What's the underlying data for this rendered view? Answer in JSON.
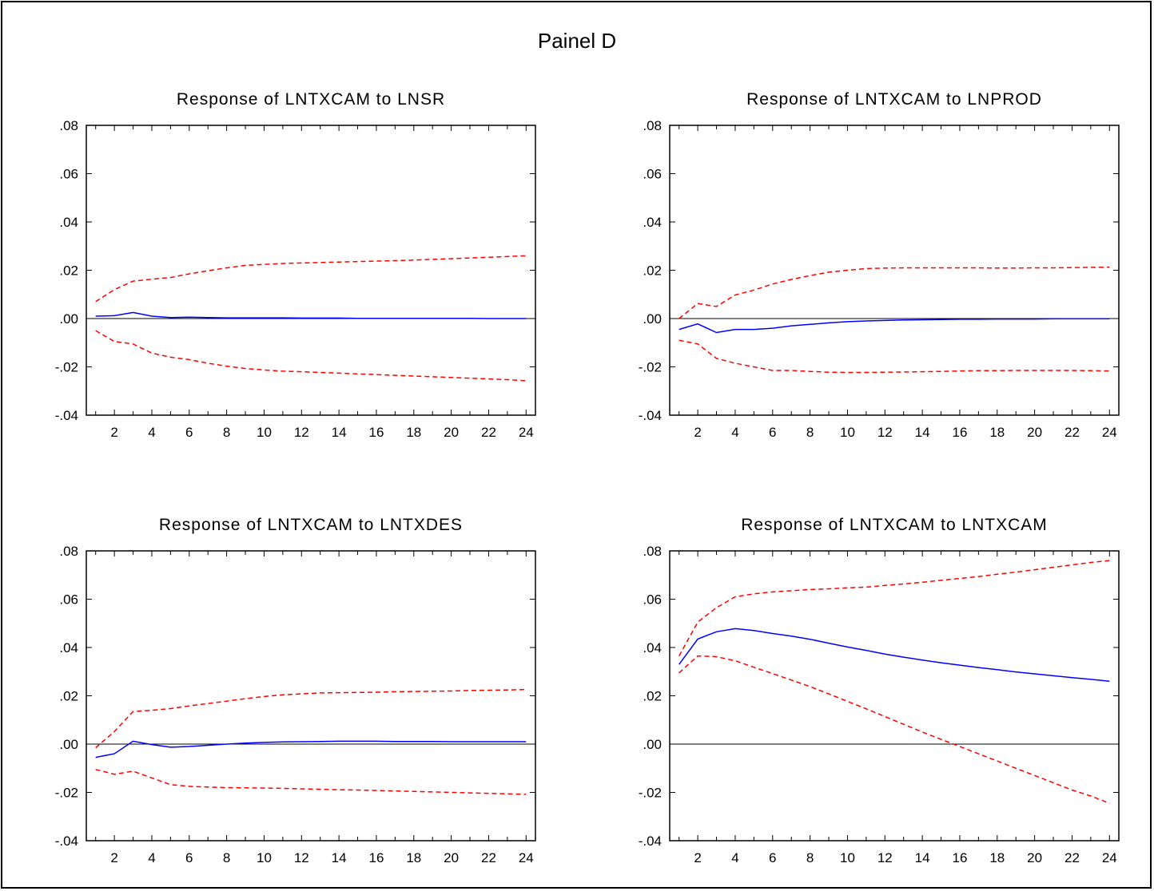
{
  "panel_title": "Painel D",
  "colors": {
    "response": "#0000ff",
    "band": "#ff0000",
    "zero": "#000000"
  },
  "chart_data": [
    {
      "type": "line",
      "title": "Response of LNTXCAM to LNSR",
      "x": [
        1,
        2,
        3,
        4,
        5,
        6,
        7,
        8,
        9,
        10,
        11,
        12,
        13,
        14,
        15,
        16,
        17,
        18,
        19,
        20,
        21,
        22,
        23,
        24
      ],
      "xticks": [
        2,
        4,
        6,
        8,
        10,
        12,
        14,
        16,
        18,
        20,
        22,
        24
      ],
      "yticks": [
        ".08",
        ".06",
        ".04",
        ".02",
        ".00",
        "-.02",
        "-.04"
      ],
      "ylim": [
        -0.04,
        0.08
      ],
      "series": [
        {
          "role": "response",
          "values": [
            0.001,
            0.0012,
            0.0025,
            0.001,
            0.0004,
            0.0006,
            0.0004,
            0.0003,
            0.0003,
            0.0003,
            0.0003,
            0.0002,
            0.0002,
            0.0002,
            0.0001,
            0.0001,
            0.0001,
            0.0001,
            0.0001,
            0.0001,
            0.0001,
            0.0,
            0.0,
            0.0
          ]
        },
        {
          "role": "upper",
          "values": [
            0.007,
            0.012,
            0.0155,
            0.0163,
            0.017,
            0.0185,
            0.0198,
            0.021,
            0.022,
            0.0224,
            0.0228,
            0.023,
            0.0232,
            0.0234,
            0.0236,
            0.0238,
            0.024,
            0.0242,
            0.0245,
            0.0248,
            0.0251,
            0.0254,
            0.0257,
            0.026
          ]
        },
        {
          "role": "lower",
          "values": [
            -0.005,
            -0.0095,
            -0.0105,
            -0.0143,
            -0.016,
            -0.017,
            -0.0185,
            -0.0197,
            -0.0207,
            -0.0213,
            -0.0218,
            -0.022,
            -0.0223,
            -0.0226,
            -0.0229,
            -0.0232,
            -0.0235,
            -0.0238,
            -0.0241,
            -0.0244,
            -0.0247,
            -0.025,
            -0.0253,
            -0.0258
          ]
        }
      ]
    },
    {
      "type": "line",
      "title": "Response of LNTXCAM to LNPROD",
      "x": [
        1,
        2,
        3,
        4,
        5,
        6,
        7,
        8,
        9,
        10,
        11,
        12,
        13,
        14,
        15,
        16,
        17,
        18,
        19,
        20,
        21,
        22,
        23,
        24
      ],
      "xticks": [
        2,
        4,
        6,
        8,
        10,
        12,
        14,
        16,
        18,
        20,
        22,
        24
      ],
      "yticks": [
        ".08",
        ".06",
        ".04",
        ".02",
        ".00",
        "-.02",
        "-.04"
      ],
      "ylim": [
        -0.04,
        0.08
      ],
      "series": [
        {
          "role": "response",
          "values": [
            -0.0045,
            -0.0022,
            -0.0058,
            -0.0045,
            -0.0045,
            -0.004,
            -0.003,
            -0.0024,
            -0.0018,
            -0.0013,
            -0.001,
            -0.0008,
            -0.0006,
            -0.0005,
            -0.0004,
            -0.0003,
            -0.0003,
            -0.0002,
            -0.0002,
            -0.0002,
            -0.0001,
            -0.0001,
            -0.0001,
            -0.0001
          ]
        },
        {
          "role": "upper",
          "values": [
            0.0,
            0.0062,
            0.005,
            0.0098,
            0.0118,
            0.0143,
            0.0162,
            0.0178,
            0.0192,
            0.02,
            0.0207,
            0.0209,
            0.021,
            0.021,
            0.021,
            0.021,
            0.021,
            0.0209,
            0.0209,
            0.021,
            0.021,
            0.0211,
            0.0212,
            0.0213
          ]
        },
        {
          "role": "lower",
          "values": [
            -0.009,
            -0.0105,
            -0.0165,
            -0.0185,
            -0.02,
            -0.0215,
            -0.0215,
            -0.0219,
            -0.0222,
            -0.0223,
            -0.0223,
            -0.0222,
            -0.0221,
            -0.022,
            -0.0219,
            -0.0217,
            -0.0216,
            -0.0216,
            -0.0215,
            -0.0215,
            -0.0215,
            -0.0215,
            -0.0216,
            -0.0217
          ]
        }
      ]
    },
    {
      "type": "line",
      "title": "Response of LNTXCAM to LNTXDES",
      "x": [
        1,
        2,
        3,
        4,
        5,
        6,
        7,
        8,
        9,
        10,
        11,
        12,
        13,
        14,
        15,
        16,
        17,
        18,
        19,
        20,
        21,
        22,
        23,
        24
      ],
      "xticks": [
        2,
        4,
        6,
        8,
        10,
        12,
        14,
        16,
        18,
        20,
        22,
        24
      ],
      "yticks": [
        ".08",
        ".06",
        ".04",
        ".02",
        ".00",
        "-.02",
        "-.04"
      ],
      "ylim": [
        -0.04,
        0.08
      ],
      "series": [
        {
          "role": "response",
          "values": [
            -0.0055,
            -0.004,
            0.0012,
            -0.0002,
            -0.0013,
            -0.001,
            -0.0005,
            0.0,
            0.0004,
            0.0007,
            0.0009,
            0.001,
            0.0011,
            0.0012,
            0.0012,
            0.0012,
            0.0011,
            0.0011,
            0.0011,
            0.001,
            0.001,
            0.001,
            0.001,
            0.001
          ]
        },
        {
          "role": "upper",
          "values": [
            -0.0015,
            0.0052,
            0.0135,
            0.014,
            0.0147,
            0.0158,
            0.0168,
            0.0178,
            0.0188,
            0.0197,
            0.0204,
            0.0208,
            0.0212,
            0.0213,
            0.0214,
            0.0215,
            0.0217,
            0.0218,
            0.0219,
            0.022,
            0.0222,
            0.0223,
            0.0224,
            0.0226
          ]
        },
        {
          "role": "lower",
          "values": [
            -0.0105,
            -0.0125,
            -0.0112,
            -0.014,
            -0.0168,
            -0.0175,
            -0.0178,
            -0.018,
            -0.0181,
            -0.0182,
            -0.0183,
            -0.0185,
            -0.0187,
            -0.0189,
            -0.019,
            -0.0192,
            -0.0194,
            -0.0196,
            -0.0198,
            -0.02,
            -0.0202,
            -0.0204,
            -0.0206,
            -0.0208
          ]
        }
      ]
    },
    {
      "type": "line",
      "title": "Response of LNTXCAM to LNTXCAM",
      "x": [
        1,
        2,
        3,
        4,
        5,
        6,
        7,
        8,
        9,
        10,
        11,
        12,
        13,
        14,
        15,
        16,
        17,
        18,
        19,
        20,
        21,
        22,
        23,
        24
      ],
      "xticks": [
        2,
        4,
        6,
        8,
        10,
        12,
        14,
        16,
        18,
        20,
        22,
        24
      ],
      "yticks": [
        ".08",
        ".06",
        ".04",
        ".02",
        ".00",
        "-.02",
        "-.04"
      ],
      "ylim": [
        -0.04,
        0.08
      ],
      "series": [
        {
          "role": "response",
          "values": [
            0.033,
            0.0435,
            0.0465,
            0.0478,
            0.047,
            0.0458,
            0.0447,
            0.0434,
            0.0418,
            0.0402,
            0.0388,
            0.0373,
            0.036,
            0.0348,
            0.0337,
            0.0327,
            0.0317,
            0.0308,
            0.0299,
            0.0291,
            0.0283,
            0.0275,
            0.0268,
            0.026
          ]
        },
        {
          "role": "upper",
          "values": [
            0.0365,
            0.0505,
            0.0565,
            0.061,
            0.0622,
            0.063,
            0.0635,
            0.064,
            0.0643,
            0.0647,
            0.065,
            0.0657,
            0.0663,
            0.067,
            0.0678,
            0.0686,
            0.0694,
            0.0703,
            0.0712,
            0.0722,
            0.0732,
            0.0742,
            0.0752,
            0.076
          ]
        },
        {
          "role": "lower",
          "values": [
            0.0295,
            0.0365,
            0.0362,
            0.0345,
            0.0318,
            0.0292,
            0.0265,
            0.0238,
            0.0208,
            0.0177,
            0.0146,
            0.0114,
            0.0082,
            0.005,
            0.002,
            -0.001,
            -0.004,
            -0.007,
            -0.01,
            -0.013,
            -0.016,
            -0.019,
            -0.0215,
            -0.0245
          ]
        }
      ]
    }
  ]
}
